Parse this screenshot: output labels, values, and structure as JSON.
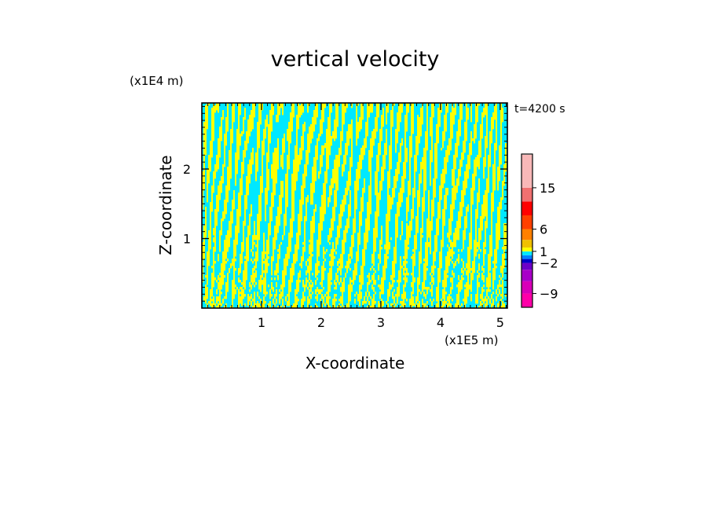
{
  "chart_data": {
    "type": "heatmap",
    "title": "vertical velocity",
    "time_label": "t=4200 s",
    "x_axis": {
      "label": "X-coordinate",
      "scale_label": "(x1E5 m)",
      "range": [
        0,
        5.12
      ],
      "ticks": [
        1,
        2,
        3,
        4,
        5
      ],
      "tick_labels": [
        "1",
        "2",
        "3",
        "4",
        "5"
      ]
    },
    "z_axis": {
      "label": "Z-coordinate",
      "scale_label": "(x1E4 m)",
      "range": [
        0,
        2.95
      ],
      "ticks": [
        1,
        2
      ],
      "tick_labels": [
        "1",
        "2"
      ]
    },
    "colorbar": {
      "levels": [
        -12,
        -9,
        -6,
        -4,
        -2,
        -1,
        0,
        1,
        2,
        4,
        6,
        9,
        12,
        15,
        20
      ],
      "labeled_levels": [
        15,
        6,
        1,
        -2,
        -9
      ],
      "labels": [
        "15",
        "6",
        "1",
        "−2",
        "−9"
      ],
      "colors": [
        "#ff00a8",
        "#d800b8",
        "#a800c8",
        "#6c00c8",
        "#0000c8",
        "#0080ff",
        "#00e8ff",
        "#ffff00",
        "#f0c000",
        "#ff8000",
        "#ff4000",
        "#ff0000",
        "#f07070",
        "#f8b8b8",
        "#fff0f0"
      ]
    },
    "field_colors": {
      "positive": "#ffff00",
      "negative": "#00e8ff"
    }
  }
}
